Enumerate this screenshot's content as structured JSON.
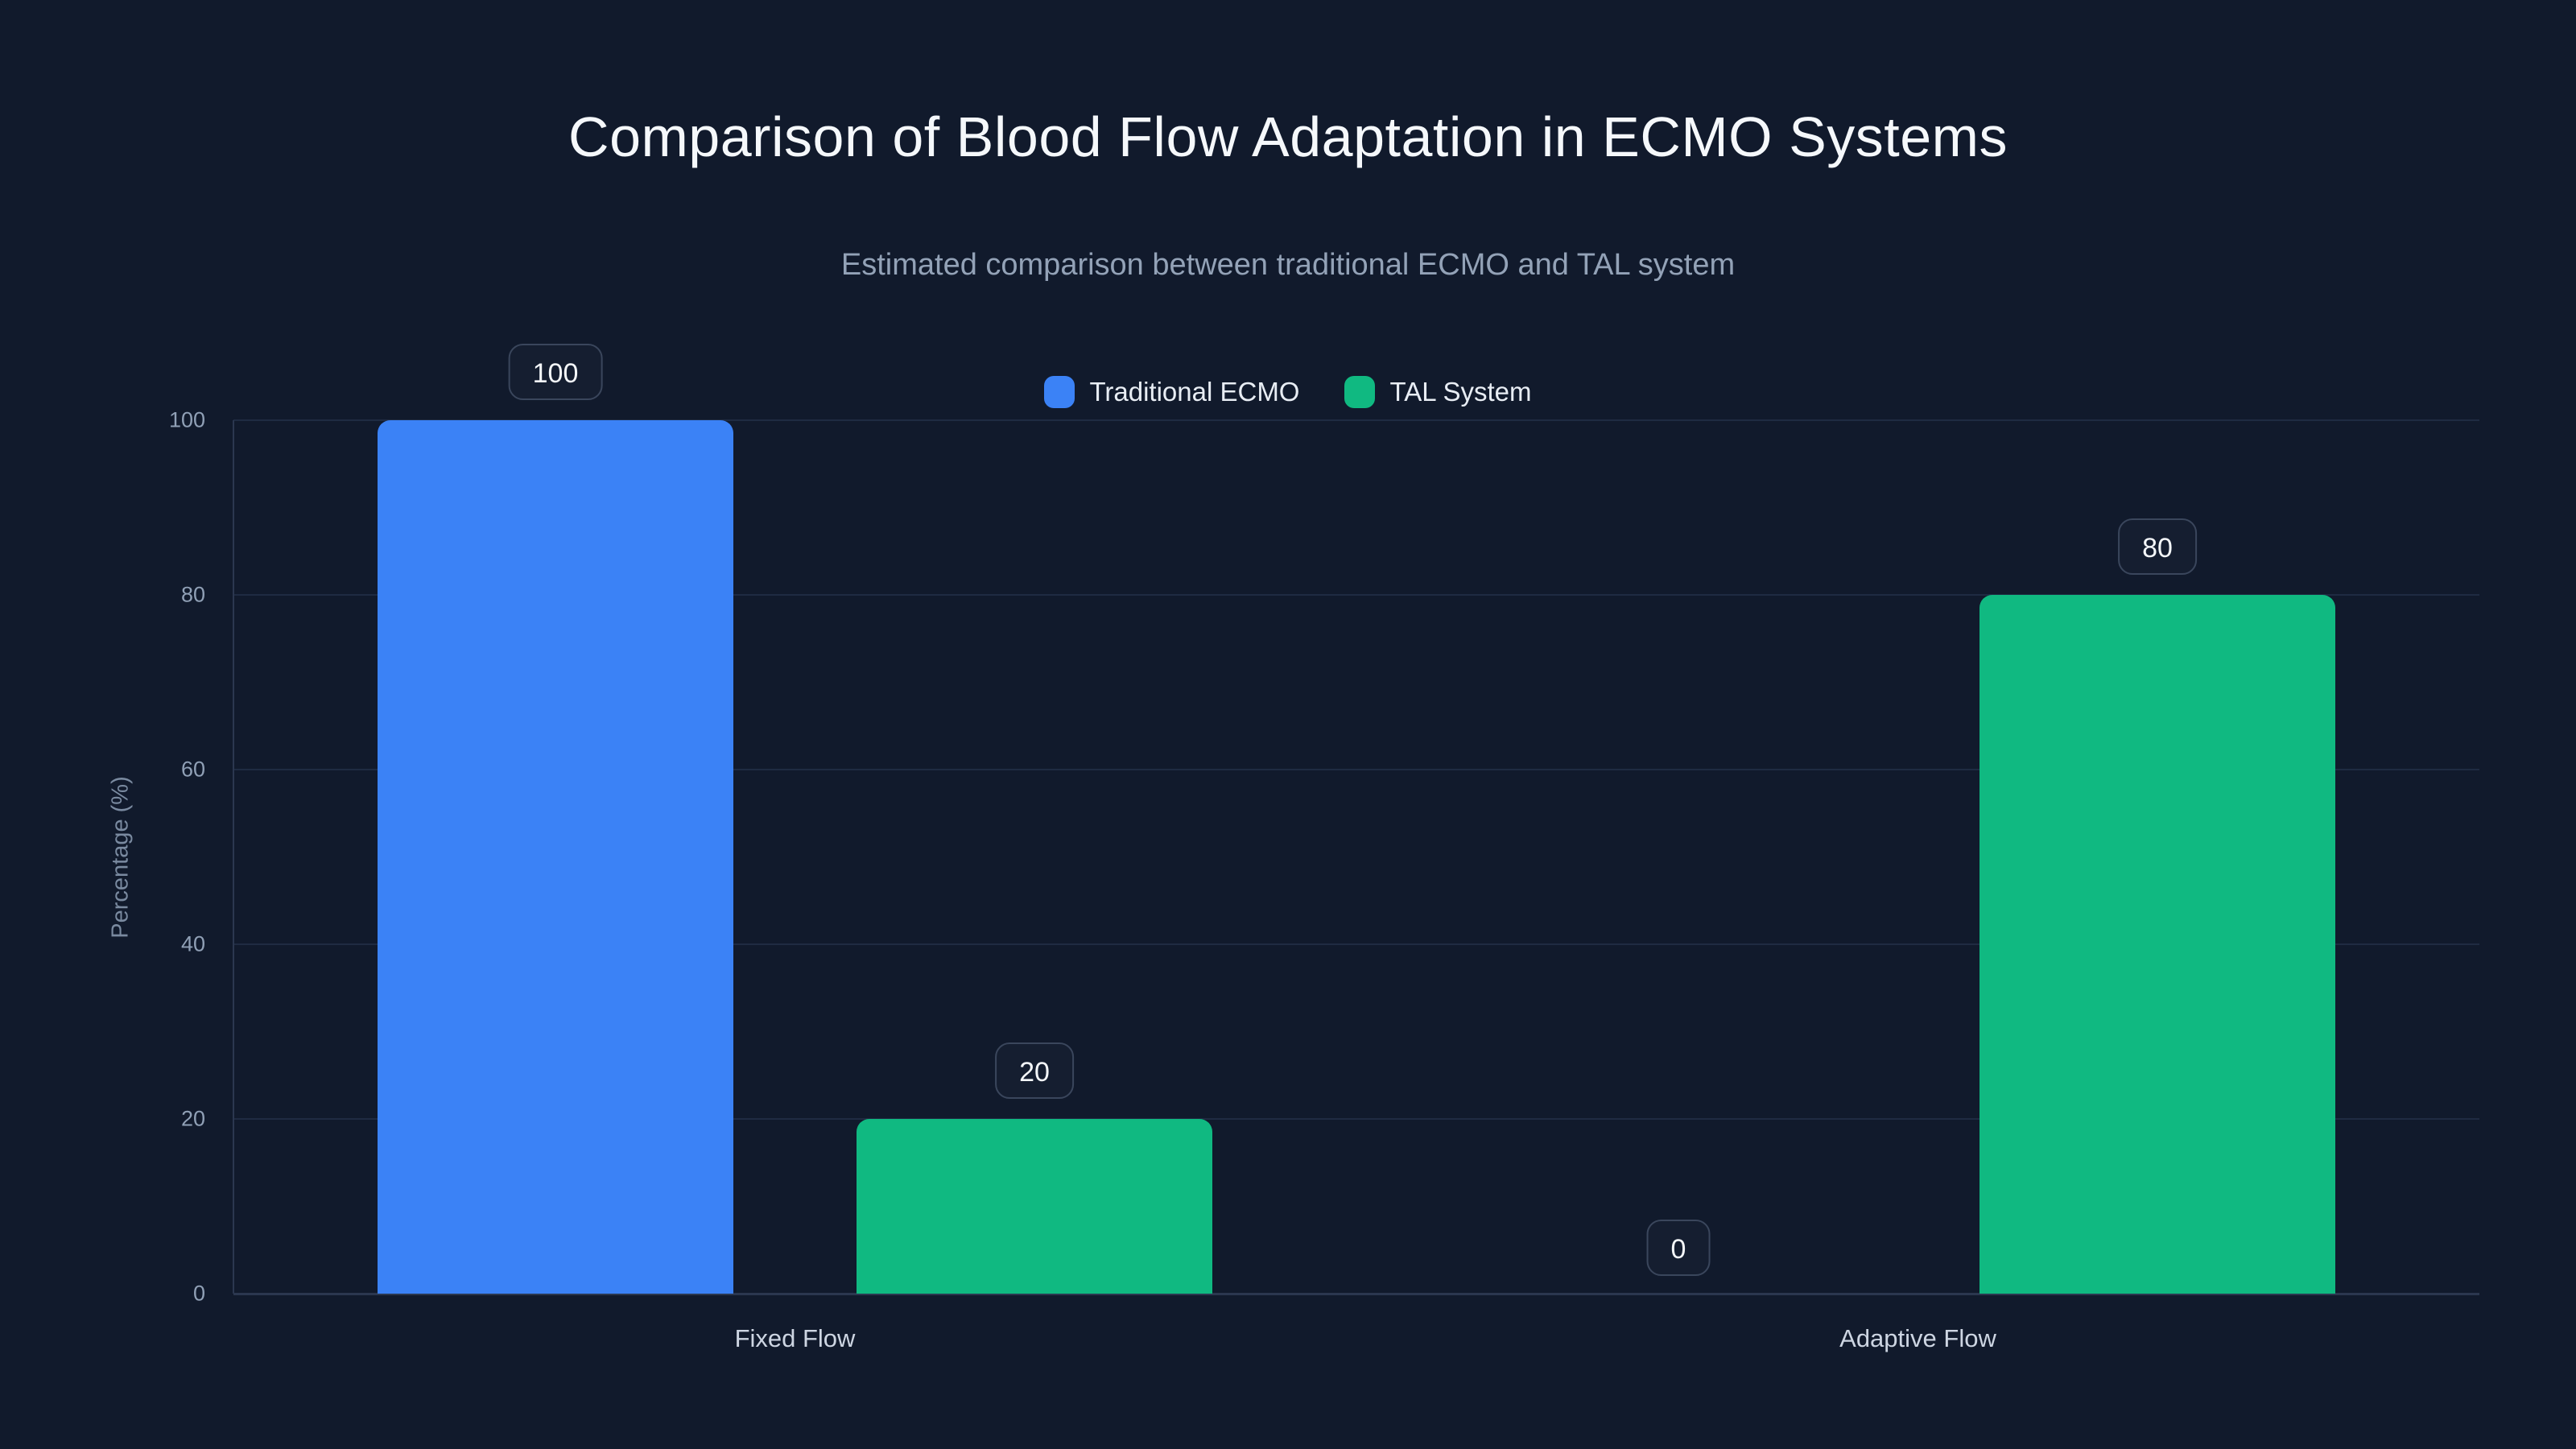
{
  "header": {
    "title": "Comparison of Blood Flow Adaptation in ECMO Systems",
    "subtitle": "Estimated comparison between traditional ECMO and TAL system"
  },
  "palette": {
    "background": "#111a2c",
    "gridline": "#1f2b42",
    "axis_line": "#2b374f",
    "badge_border": "#3a465c",
    "title_text": "#f5f8fb",
    "subtitle_text": "#93a2b7",
    "tick_text": "#90a0b6",
    "category_text": "#cdd5e2",
    "traditional_ecmo": "#3b82f6",
    "tal_system": "#10b981"
  },
  "chart_data": {
    "type": "bar",
    "title": "Comparison of Blood Flow Adaptation in ECMO Systems",
    "subtitle": "Estimated comparison between traditional ECMO and TAL system",
    "categories": [
      "Fixed Flow",
      "Adaptive Flow"
    ],
    "series": [
      {
        "name": "Traditional ECMO",
        "color": "#3b82f6",
        "values": [
          100,
          0
        ]
      },
      {
        "name": "TAL System",
        "color": "#10b981",
        "values": [
          20,
          80
        ]
      }
    ],
    "value_labels": [
      [
        "100",
        "0"
      ],
      [
        "20",
        "80"
      ]
    ],
    "xlabel": "",
    "ylabel": "Percentage (%)",
    "ylim": [
      0,
      100
    ],
    "yticks": [
      0,
      20,
      40,
      60,
      80,
      100
    ],
    "grid": "horizontal",
    "legend_position": "top-center"
  }
}
